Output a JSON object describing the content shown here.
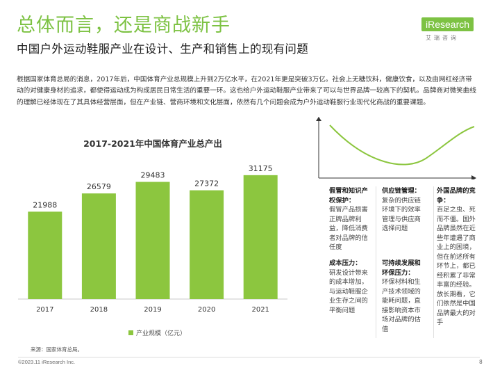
{
  "header": {
    "title": "总体而言，还是商战新手",
    "subtitle": "中国户外运动鞋服产业在设计、生产和销售上的现有问题",
    "logo_text": "iResearch",
    "logo_cn": "艾瑞咨询"
  },
  "body_text": "根据国家体育总局的消息，2017年后，中国体育产业总规模上升到2万亿水平，在2021年更是突破3万亿。社会上无糖饮料，健康饮食，以及由网红经济带动的对健康身材的追求，都使得运动成为构成居民日常生活的重要一环。这也给户外运动鞋服产业带来了可以与世界品牌一较高下的契机。品牌商对微笑曲线的理解已经体现在了其具体经营层面，但在产业链、营商环境和文化层面，依然有几个问题会成为户外运动鞋服行业现代化商战的重要课题。",
  "chart_data": {
    "type": "bar",
    "title": "2017-2021年中国体育产业总产出",
    "categories": [
      "2017",
      "2018",
      "2019",
      "2020",
      "2021"
    ],
    "values": [
      21988,
      26579,
      29483,
      27372,
      31175
    ],
    "series": [
      {
        "name": "产业规模（亿元）",
        "values": [
          21988,
          26579,
          29483,
          27372,
          31175
        ]
      }
    ],
    "ylim": [
      0,
      35000
    ],
    "legend_position": "bottom",
    "bar_color": "#8cc63f",
    "value_labels": true,
    "grid": false
  },
  "issues": {
    "ip": {
      "title": "假冒和知识产权保护：",
      "text": "假冒产品损害正牌品牌利益，降低消费者对品牌的信任度"
    },
    "supply": {
      "title": "供应链管理：",
      "text": "复杂的供应链环境下的效率管理与供应商选择问题"
    },
    "foreign": {
      "title": "外国品牌的竞争：",
      "text": "百足之虫、死而不僵。国外品牌虽然在近些年遭遇了商业上的困境，但在前述所有环节上，都已经积累了非常丰富的经验。放长期看，它们依然是中国品牌最大的对手"
    },
    "cost": {
      "title": "成本压力：",
      "text": "研发设计带来的成本增加，与运动鞋服企业生存之间的平衡问题"
    },
    "sustain": {
      "title": "可持续发展和环保压力：",
      "text": "环保材料和生产技术领域的能耗问题，直接影响资本市场对品牌的估值"
    }
  },
  "footer": {
    "source": "来源：国家体育总局。",
    "copyright": "©2023.11 iResearch Inc.",
    "page": "8"
  },
  "colors": {
    "accent": "#7dc243",
    "bar": "#8cc63f",
    "curve": "#8cc63f"
  }
}
